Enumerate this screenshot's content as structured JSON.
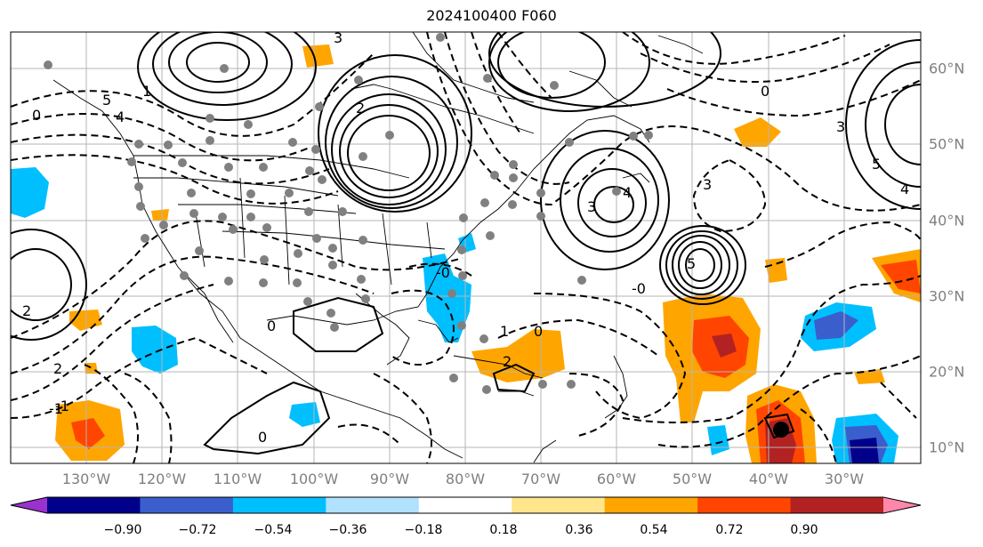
{
  "title": "2024100400 F060",
  "lon_labels": [
    "130°W",
    "120°W",
    "110°W",
    "100°W",
    "90°W",
    "80°W",
    "70°W",
    "60°W",
    "50°W",
    "40°W",
    "30°W"
  ],
  "lat_labels": [
    "60°N",
    "50°N",
    "40°N",
    "30°N",
    "20°N",
    "10°N"
  ],
  "colorbar": {
    "ticks": [
      "−0.90",
      "−0.72",
      "−0.54",
      "−0.36",
      "−0.18",
      "0.18",
      "0.36",
      "0.54",
      "0.72",
      "0.90"
    ],
    "colors": [
      "#9a32cd",
      "#00008b",
      "#3a5fcd",
      "#00bfff",
      "#b0e2ff",
      "#ffffff",
      "#ffe68c",
      "#ffa500",
      "#ff4500",
      "#b22222",
      "#ff88aa"
    ]
  },
  "contour_labels": [
    "3",
    "4",
    "5",
    "0",
    "1",
    "2",
    "-1",
    "-0",
    "3",
    "4",
    "3",
    "5",
    "2",
    "-0",
    "0",
    "1",
    "2",
    "5",
    "3",
    "4",
    "0",
    "2",
    "-1",
    "0",
    "0"
  ],
  "colors": {
    "grid": "#b5b5b5",
    "contour": "#000000",
    "marker": "#808080"
  }
}
